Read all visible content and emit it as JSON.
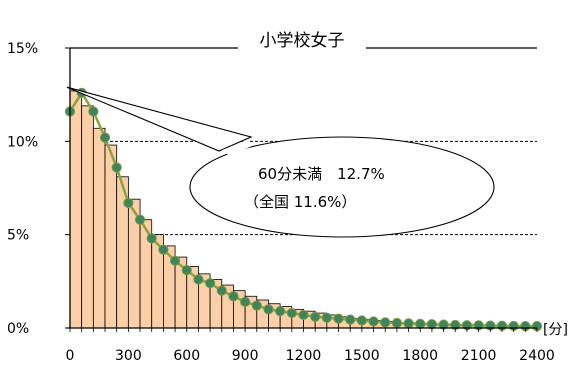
{
  "chart_data": {
    "type": "bar",
    "title": "小学校女子",
    "x_unit_label": "[分]",
    "ylim": [
      0,
      15
    ],
    "y_ticks": [
      0,
      5,
      10,
      15
    ],
    "y_tick_labels": [
      "0%",
      "5%",
      "10%",
      "15%"
    ],
    "xlim": [
      0,
      2400
    ],
    "x_ticks": [
      0,
      300,
      600,
      900,
      1200,
      1500,
      1800,
      2100,
      2400
    ],
    "x_tick_labels": [
      "0",
      "300",
      "600",
      "900",
      "1200",
      "1500",
      "1800",
      "2100",
      "2400"
    ],
    "bin_width": 60,
    "grid": {
      "y_dashed_at": [
        5,
        10
      ]
    },
    "bars": {
      "x": [
        0,
        60,
        120,
        180,
        240,
        300,
        360,
        420,
        480,
        540,
        600,
        660,
        720,
        780,
        840,
        900,
        960,
        1020,
        1080,
        1140,
        1200,
        1260,
        1320,
        1380,
        1440,
        1500,
        1560,
        1620,
        1680,
        1740,
        1800,
        1860,
        1920,
        1980,
        2040,
        2100,
        2160,
        2220,
        2280,
        2340
      ],
      "values": [
        12.7,
        11.9,
        10.7,
        9.8,
        8.1,
        6.9,
        5.8,
        5.0,
        4.4,
        3.8,
        3.3,
        2.9,
        2.6,
        2.3,
        2.0,
        1.7,
        1.5,
        1.3,
        1.15,
        1.0,
        0.9,
        0.8,
        0.7,
        0.6,
        0.5,
        0.45,
        0.4,
        0.35,
        0.3,
        0.28,
        0.25,
        0.22,
        0.2,
        0.18,
        0.16,
        0.15,
        0.14,
        0.13,
        0.12,
        0.11
      ],
      "fill": "#FBCFA8",
      "stroke": "#000000"
    },
    "series": [
      {
        "x": [
          0,
          60,
          120,
          180,
          240,
          300,
          360,
          420,
          480,
          540,
          600,
          660,
          720,
          780,
          840,
          900,
          960,
          1020,
          1080,
          1140,
          1200,
          1260,
          1320,
          1380,
          1440,
          1500,
          1560,
          1620,
          1680,
          1740,
          1800,
          1860,
          1920,
          1980,
          2040,
          2100,
          2160,
          2220,
          2280,
          2340,
          2400
        ],
        "values": [
          11.6,
          12.6,
          11.6,
          10.2,
          8.6,
          6.7,
          5.8,
          4.8,
          4.2,
          3.6,
          3.1,
          2.6,
          2.4,
          2.0,
          1.7,
          1.4,
          1.2,
          1.0,
          0.9,
          0.8,
          0.7,
          0.6,
          0.55,
          0.5,
          0.45,
          0.4,
          0.35,
          0.3,
          0.27,
          0.25,
          0.22,
          0.2,
          0.18,
          0.16,
          0.15,
          0.14,
          0.13,
          0.12,
          0.11,
          0.1,
          0.1
        ],
        "line_color": "#8CA23C",
        "marker_color": "#3E8460"
      }
    ],
    "annotation": {
      "line1": "60分未満　12.7%",
      "line2": "（全国 11.6%）",
      "points_to_x": 0,
      "points_to_value": 12.9
    }
  }
}
